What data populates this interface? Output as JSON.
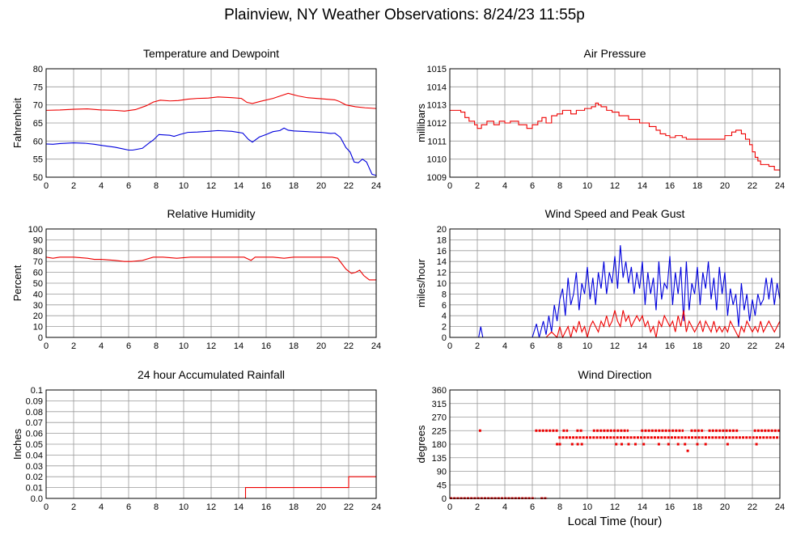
{
  "page": {
    "title": "Plainview, NY Weather Observations: 8/24/23 11:55p",
    "xlabel": "Local Time (hour)"
  },
  "colors": {
    "red": "#ee0000",
    "blue": "#0000dd",
    "grid": "#999999",
    "frame": "#000000"
  },
  "chart_data": [
    {
      "id": "temp",
      "type": "line",
      "title": "Temperature and Dewpoint",
      "xlabel": "",
      "ylabel": "Fahrenheit",
      "xlim": [
        0,
        24
      ],
      "ylim": [
        50,
        80
      ],
      "xticks": [
        0,
        2,
        4,
        6,
        8,
        10,
        12,
        14,
        16,
        18,
        20,
        22,
        24
      ],
      "yticks": [
        50,
        55,
        60,
        65,
        70,
        75,
        80
      ],
      "grid": true,
      "series": [
        {
          "color": "red",
          "step": false,
          "x": [
            0,
            1,
            2,
            3,
            4,
            5,
            5.7,
            6.5,
            7.3,
            7.8,
            8.3,
            9,
            9.6,
            10.3,
            11,
            11.8,
            12.5,
            13.5,
            14.2,
            14.6,
            15,
            15.6,
            16.5,
            17.2,
            17.6,
            18.3,
            19,
            20,
            21,
            21.3,
            21.8,
            22.5,
            23.2,
            24
          ],
          "y": [
            68.5,
            68.6,
            68.8,
            68.9,
            68.6,
            68.5,
            68.3,
            68.7,
            69.8,
            70.8,
            71.3,
            71.1,
            71.2,
            71.6,
            71.8,
            71.9,
            72.2,
            72,
            71.8,
            70.7,
            70.4,
            71,
            71.8,
            72.7,
            73.2,
            72.5,
            72,
            71.7,
            71.4,
            71,
            70,
            69.5,
            69.2,
            69
          ]
        },
        {
          "color": "blue",
          "step": false,
          "x": [
            0,
            0.5,
            1,
            2,
            2.8,
            3.5,
            4.4,
            5,
            5.5,
            6,
            6.3,
            7,
            7.5,
            7.8,
            8.2,
            9,
            9.3,
            9.8,
            10.3,
            11,
            11.8,
            12.5,
            13.5,
            14.3,
            14.7,
            15,
            15.5,
            16,
            16.5,
            17,
            17.3,
            17.6,
            18,
            19,
            20,
            20.7,
            21,
            21.4,
            21.8,
            22.1,
            22.4,
            22.7,
            23,
            23.3,
            23.7,
            24
          ],
          "y": [
            59.2,
            59.1,
            59.3,
            59.5,
            59.4,
            59.1,
            58.6,
            58.3,
            57.9,
            57.5,
            57.5,
            58,
            59.5,
            60.3,
            61.8,
            61.6,
            61.3,
            61.9,
            62.4,
            62.5,
            62.7,
            62.9,
            62.7,
            62.2,
            60.5,
            59.7,
            61.1,
            61.8,
            62.6,
            62.9,
            63.6,
            63,
            62.8,
            62.6,
            62.4,
            62.1,
            62.2,
            61,
            58.2,
            57,
            54.2,
            54,
            55,
            54.2,
            50.8,
            50.5
          ]
        }
      ]
    },
    {
      "id": "pressure",
      "type": "line",
      "title": "Air Pressure",
      "xlabel": "",
      "ylabel": "millibars",
      "xlim": [
        0,
        24
      ],
      "ylim": [
        1009,
        1015
      ],
      "xticks": [
        0,
        2,
        4,
        6,
        8,
        10,
        12,
        14,
        16,
        18,
        20,
        22,
        24
      ],
      "yticks": [
        1009,
        1010,
        1011,
        1012,
        1013,
        1014,
        1015
      ],
      "grid": true,
      "series": [
        {
          "color": "red",
          "step": true,
          "x": [
            0,
            0.8,
            1.1,
            1.4,
            1.8,
            2.0,
            2.3,
            2.7,
            3.2,
            3.6,
            4.0,
            4.4,
            5.0,
            5.6,
            6.0,
            6.4,
            6.7,
            7.0,
            7.4,
            7.8,
            8.2,
            8.8,
            9.2,
            9.8,
            10.3,
            10.6,
            10.8,
            11.0,
            11.4,
            11.8,
            12.3,
            13.0,
            13.8,
            14.5,
            15.0,
            15.3,
            15.7,
            16.0,
            16.4,
            16.9,
            17.2,
            18.0,
            19.0,
            20.0,
            20.5,
            20.8,
            21.2,
            21.5,
            21.8,
            22.0,
            22.2,
            22.4,
            22.6,
            22.9,
            23.2,
            23.6,
            24
          ],
          "y": [
            1012.7,
            1012.6,
            1012.3,
            1012.1,
            1011.9,
            1011.7,
            1011.9,
            1012.1,
            1011.9,
            1012.1,
            1012.0,
            1012.1,
            1011.9,
            1011.7,
            1011.9,
            1012.1,
            1012.3,
            1012.0,
            1012.4,
            1012.5,
            1012.7,
            1012.5,
            1012.7,
            1012.8,
            1012.9,
            1013.1,
            1013.0,
            1012.9,
            1012.7,
            1012.6,
            1012.4,
            1012.2,
            1012.0,
            1011.8,
            1011.6,
            1011.4,
            1011.3,
            1011.2,
            1011.3,
            1011.2,
            1011.1,
            1011.1,
            1011.1,
            1011.3,
            1011.5,
            1011.6,
            1011.4,
            1011.1,
            1010.8,
            1010.4,
            1010.1,
            1009.9,
            1009.7,
            1009.7,
            1009.6,
            1009.4,
            1009.3
          ]
        }
      ]
    },
    {
      "id": "humidity",
      "type": "line",
      "title": "Relative Humidity",
      "xlabel": "",
      "ylabel": "Percent",
      "xlim": [
        0,
        24
      ],
      "ylim": [
        0,
        100
      ],
      "xticks": [
        0,
        2,
        4,
        6,
        8,
        10,
        12,
        14,
        16,
        18,
        20,
        22,
        24
      ],
      "yticks": [
        0,
        10,
        20,
        30,
        40,
        50,
        60,
        70,
        80,
        90,
        100
      ],
      "grid": true,
      "series": [
        {
          "color": "red",
          "step": false,
          "x": [
            0,
            0.5,
            1,
            2,
            3,
            3.5,
            4,
            5,
            5.7,
            6.2,
            7,
            7.8,
            8.5,
            9.5,
            10.5,
            11.5,
            12.5,
            13.5,
            14.4,
            14.9,
            15.2,
            15.6,
            16.5,
            17.3,
            18,
            19,
            20,
            20.8,
            21.2,
            21.5,
            21.8,
            22.2,
            22.5,
            22.8,
            23.1,
            23.5,
            24
          ],
          "y": [
            74,
            73,
            74,
            74,
            73,
            72,
            72,
            71,
            70,
            70,
            71,
            74,
            74,
            73,
            74,
            74,
            74,
            74,
            74,
            71,
            74,
            74,
            74,
            73,
            74,
            74,
            74,
            74,
            73,
            68,
            63,
            59,
            60,
            62,
            57,
            53,
            53
          ]
        }
      ]
    },
    {
      "id": "wind",
      "type": "line",
      "title": "Wind Speed and Peak Gust",
      "xlabel": "",
      "ylabel": "miles/hour",
      "xlim": [
        0,
        24
      ],
      "ylim": [
        0,
        20
      ],
      "xticks": [
        0,
        2,
        4,
        6,
        8,
        10,
        12,
        14,
        16,
        18,
        20,
        22,
        24
      ],
      "yticks": [
        0,
        2,
        4,
        6,
        8,
        10,
        12,
        14,
        16,
        18,
        20
      ],
      "grid": true,
      "series": [
        {
          "color": "blue",
          "step": false,
          "x": [
            0,
            2.1,
            2.25,
            2.4,
            6.0,
            6.3,
            6.5,
            6.8,
            7.0,
            7.2,
            7.4,
            7.6,
            7.8,
            8.0,
            8.2,
            8.4,
            8.6,
            8.8,
            9.0,
            9.2,
            9.4,
            9.6,
            9.8,
            10.0,
            10.2,
            10.4,
            10.6,
            10.8,
            11.0,
            11.2,
            11.4,
            11.6,
            11.8,
            12.0,
            12.2,
            12.4,
            12.6,
            12.8,
            13.0,
            13.2,
            13.4,
            13.6,
            13.8,
            14.0,
            14.2,
            14.4,
            14.6,
            14.8,
            15.0,
            15.2,
            15.4,
            15.6,
            15.8,
            16.0,
            16.2,
            16.4,
            16.6,
            16.8,
            17.0,
            17.2,
            17.4,
            17.6,
            17.8,
            18.0,
            18.2,
            18.4,
            18.6,
            18.8,
            19.0,
            19.2,
            19.4,
            19.6,
            19.8,
            20.0,
            20.2,
            20.4,
            20.6,
            20.8,
            21.0,
            21.2,
            21.4,
            21.6,
            21.8,
            22.0,
            22.2,
            22.4,
            22.6,
            22.8,
            23.0,
            23.2,
            23.4,
            23.6,
            23.8,
            24.0
          ],
          "y": [
            0,
            0,
            2,
            0,
            0,
            2.5,
            0,
            3,
            0.5,
            4,
            1,
            6,
            3,
            7,
            9,
            4,
            11,
            6,
            8,
            12,
            5,
            10,
            8,
            13,
            7,
            11,
            6,
            12,
            9,
            14,
            8,
            12,
            10,
            15,
            9,
            17,
            11,
            14,
            10,
            13,
            8,
            12,
            9,
            14,
            6,
            12,
            8,
            11,
            5,
            14,
            7,
            10,
            9,
            15,
            6,
            12,
            8,
            13,
            3,
            14,
            5,
            10,
            8,
            13,
            6,
            12,
            9,
            14,
            7,
            11,
            5,
            13,
            8,
            12,
            4,
            9,
            6,
            8,
            2,
            10,
            5,
            8,
            3,
            7,
            4,
            8,
            6,
            7,
            11,
            7,
            11,
            6,
            10,
            7
          ]
        },
        {
          "color": "red",
          "step": false,
          "x": [
            0,
            6.0,
            7.0,
            7.4,
            7.8,
            8.0,
            8.2,
            8.4,
            8.6,
            8.8,
            9.0,
            9.2,
            9.4,
            9.6,
            9.8,
            10.0,
            10.2,
            10.4,
            10.6,
            10.8,
            11.0,
            11.2,
            11.4,
            11.6,
            11.8,
            12.0,
            12.2,
            12.4,
            12.6,
            12.8,
            13.0,
            13.2,
            13.4,
            13.6,
            13.8,
            14.0,
            14.2,
            14.4,
            14.6,
            14.8,
            15.0,
            15.2,
            15.4,
            15.6,
            15.8,
            16.0,
            16.2,
            16.4,
            16.6,
            16.8,
            17.0,
            17.2,
            17.4,
            17.6,
            17.8,
            18.0,
            18.2,
            18.4,
            18.6,
            18.8,
            19.0,
            19.2,
            19.4,
            19.6,
            19.8,
            20.0,
            20.2,
            20.4,
            20.6,
            20.8,
            21.0,
            21.2,
            21.4,
            21.6,
            21.8,
            22.0,
            22.2,
            22.4,
            22.6,
            22.8,
            23.0,
            23.2,
            23.4,
            23.6,
            23.8,
            24.0
          ],
          "y": [
            0,
            0,
            0,
            1,
            0,
            2,
            0,
            1,
            2,
            0,
            2,
            1,
            3,
            1,
            2,
            0,
            2,
            3,
            2,
            1,
            3,
            2,
            4,
            2,
            3,
            5,
            3,
            2,
            5,
            3,
            4,
            2,
            3,
            4,
            3,
            4,
            2,
            3,
            1,
            2,
            0,
            3,
            2,
            4,
            3,
            2,
            3,
            1,
            4,
            2,
            5,
            1,
            3,
            2,
            1,
            2,
            3,
            1,
            3,
            2,
            1,
            3,
            1,
            2,
            1,
            2,
            1,
            3,
            2,
            1,
            0,
            2,
            1,
            3,
            2,
            1,
            2,
            1,
            3,
            1,
            2,
            3,
            2,
            1,
            2,
            3
          ]
        }
      ]
    },
    {
      "id": "rain",
      "type": "line",
      "title": "24 hour Accumulated Rainfall",
      "xlabel": "",
      "ylabel": "Inches",
      "xlim": [
        0,
        24
      ],
      "ylim": [
        0,
        0.1
      ],
      "xticks": [
        0,
        2,
        4,
        6,
        8,
        10,
        12,
        14,
        16,
        18,
        20,
        22,
        24
      ],
      "yticks": [
        "0.0",
        "0.01",
        "0.02",
        "0.03",
        "0.04",
        "0.05",
        "0.06",
        "0.07",
        "0.08",
        "0.09",
        "0.1"
      ],
      "grid": true,
      "series": [
        {
          "color": "red",
          "step": true,
          "x": [
            0,
            14.5,
            22.0,
            24
          ],
          "y": [
            0,
            0.01,
            0.02,
            0.02
          ]
        }
      ]
    },
    {
      "id": "winddir",
      "type": "scatter",
      "title": "Wind Direction",
      "xlabel": "Local Time (hour)",
      "ylabel": "degrees",
      "xlim": [
        0,
        24
      ],
      "ylim": [
        0,
        360
      ],
      "xticks": [
        0,
        2,
        4,
        6,
        8,
        10,
        12,
        14,
        16,
        18,
        20,
        22,
        24
      ],
      "yticks": [
        0,
        45,
        90,
        135,
        180,
        225,
        270,
        315,
        360
      ],
      "grid": true,
      "series": [
        {
          "color": "red",
          "x": [
            2.2,
            7.8,
            8.0,
            8.9,
            9.3,
            9.6,
            12.1,
            13.5,
            14.1,
            15.2,
            15.9,
            16.6,
            17.3,
            18.6,
            20.2,
            22.3,
            12.5,
            13.0,
            17.1,
            18.0
          ],
          "y": [
            225,
            180,
            180,
            180,
            180,
            180,
            180,
            180,
            180,
            180,
            180,
            180,
            158,
            180,
            180,
            180,
            180,
            180,
            180,
            180
          ]
        }
      ],
      "bands": [
        {
          "degrees": 0,
          "from": 0,
          "to": 6.2,
          "color": "red"
        },
        {
          "degrees": 0,
          "from": 6.6,
          "to": 7.1,
          "color": "red"
        },
        {
          "degrees": 225,
          "from": 6.2,
          "to": 7.9,
          "color": "red"
        },
        {
          "degrees": 225,
          "from": 8.2,
          "to": 8.6,
          "color": "red"
        },
        {
          "degrees": 225,
          "from": 9.2,
          "to": 9.7,
          "color": "red"
        },
        {
          "degrees": 225,
          "from": 10.4,
          "to": 13.0,
          "color": "red"
        },
        {
          "degrees": 225,
          "from": 13.9,
          "to": 17.0,
          "color": "red"
        },
        {
          "degrees": 225,
          "from": 17.5,
          "to": 18.5,
          "color": "red"
        },
        {
          "degrees": 225,
          "from": 18.8,
          "to": 21.0,
          "color": "red"
        },
        {
          "degrees": 225,
          "from": 22.1,
          "to": 24.0,
          "color": "red"
        },
        {
          "degrees": 202,
          "from": 7.9,
          "to": 24.0,
          "color": "red"
        }
      ]
    }
  ]
}
